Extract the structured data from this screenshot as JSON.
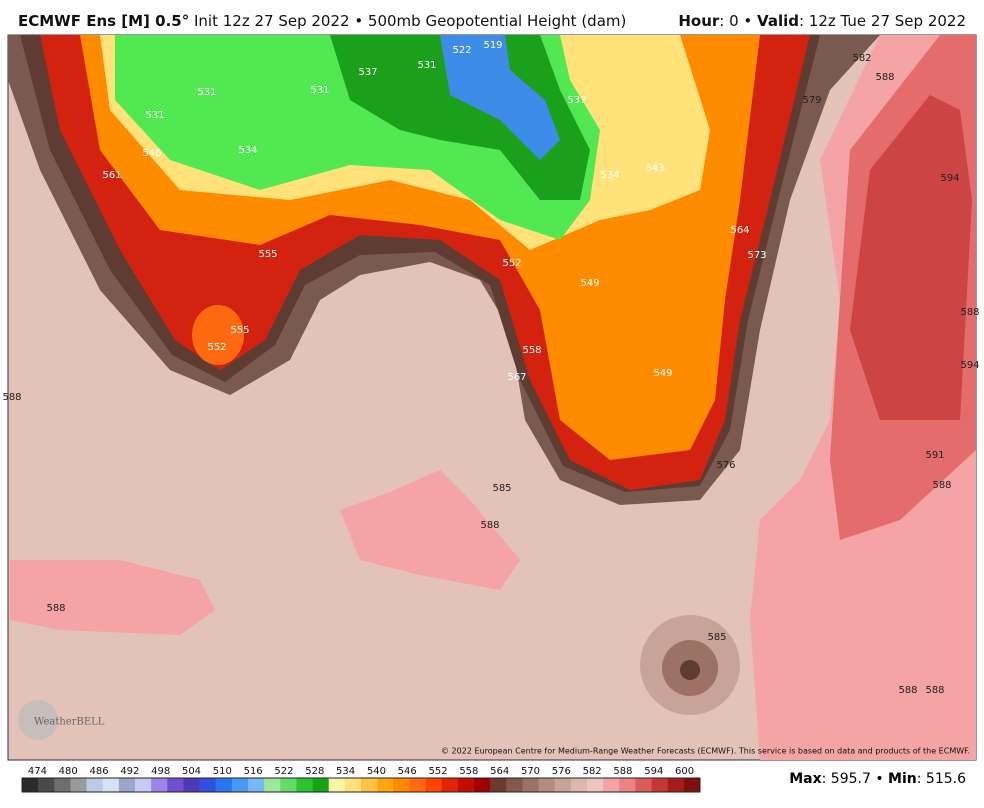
{
  "header": {
    "model": "ECMWF Ens [M] 0.5°",
    "run": "Init 12z 27 Sep 2022 • 500mb Geopotential Height (dam)",
    "hour_label": "Hour",
    "hour_value": ": 0 •",
    "valid_label": "Valid",
    "valid_value": ": 12z Tue 27 Sep 2022"
  },
  "map": {
    "contour_labels": [
      531,
      531,
      537,
      531,
      531,
      522,
      519,
      537,
      534,
      543,
      546,
      561,
      534,
      555,
      555,
      552,
      552,
      549,
      558,
      567,
      549,
      564,
      573,
      579,
      582,
      588,
      594,
      588,
      594,
      591,
      588,
      576,
      585,
      588,
      588,
      588,
      585,
      588,
      588
    ],
    "copyright": "© 2022 European Centre for Medium-Range Weather Forecasts (ECMWF). This service is based on data and products of the ECMWF.",
    "logo": "WeatherBELL"
  },
  "colorbar": {
    "labels": [
      474,
      480,
      486,
      492,
      498,
      504,
      510,
      516,
      522,
      528,
      534,
      540,
      546,
      552,
      558,
      564,
      570,
      576,
      582,
      588,
      594,
      600
    ],
    "colors": [
      "#2b2b2b",
      "#4a4a4a",
      "#6e6e6e",
      "#9a9a9a",
      "#b9cce6",
      "#d4e2f2",
      "#9aa6cc",
      "#c9c9f5",
      "#9a86e6",
      "#7050d0",
      "#4e3ab8",
      "#3050e0",
      "#2a76f0",
      "#4a98f4",
      "#74b8f8",
      "#9ce89c",
      "#64dc64",
      "#2cc42c",
      "#16a416",
      "#f6f6a4",
      "#ffe07a",
      "#ffc444",
      "#ffa610",
      "#ff8a00",
      "#ff6a10",
      "#ff4400",
      "#e42400",
      "#c40c00",
      "#a00000",
      "#6e3a2e",
      "#84584c",
      "#9c7264",
      "#b48c80",
      "#c8a498",
      "#dab8ac",
      "#f0c4be",
      "#f4a4a4",
      "#ec8282",
      "#dc5c5c",
      "#c83636",
      "#a81c1c",
      "#801010"
    ],
    "max_label": "Max",
    "max_value": ": 595.7 •",
    "min_label": "Min",
    "min_value": ": 515.6"
  }
}
